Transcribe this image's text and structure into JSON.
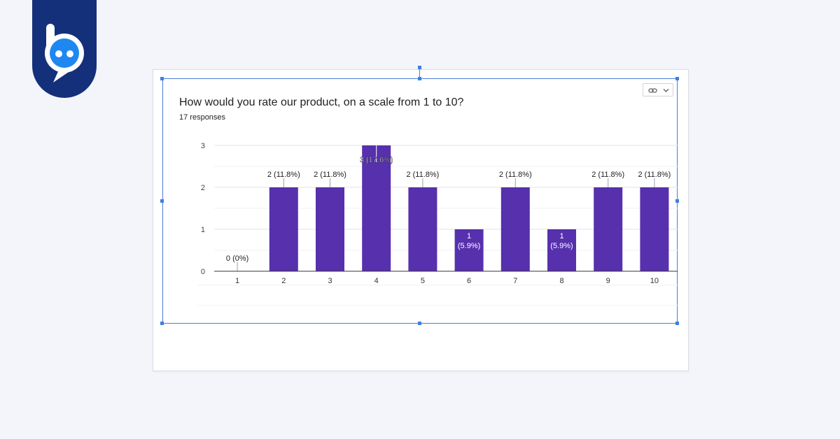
{
  "colors": {
    "brand": "#15307a",
    "bar": "#5630ad",
    "selection": "#3f7fe0"
  },
  "icons": {
    "logo": "chat-bubble-face-logo",
    "link": "link-chevron-down-icon"
  },
  "chart_data": {
    "type": "bar",
    "title": "How would you rate our product, on a scale from 1 to 10?",
    "subtitle": "17 responses",
    "categories": [
      "1",
      "2",
      "3",
      "4",
      "5",
      "6",
      "7",
      "8",
      "9",
      "10"
    ],
    "values": [
      0,
      2,
      2,
      3,
      2,
      1,
      2,
      1,
      2,
      2
    ],
    "data_labels": [
      "0 (0%)",
      "2 (11.8%)",
      "2 (11.8%)",
      "3 (17.6%)",
      "2 (11.8%)",
      "1 (5.9%)",
      "2 (11.8%)",
      "1 (5.9%)",
      "2 (11.8%)",
      "2 (11.8%)"
    ],
    "ylim": [
      0,
      3
    ],
    "yticks": [
      0,
      1,
      2,
      3
    ],
    "grid": true,
    "legend": "none"
  }
}
